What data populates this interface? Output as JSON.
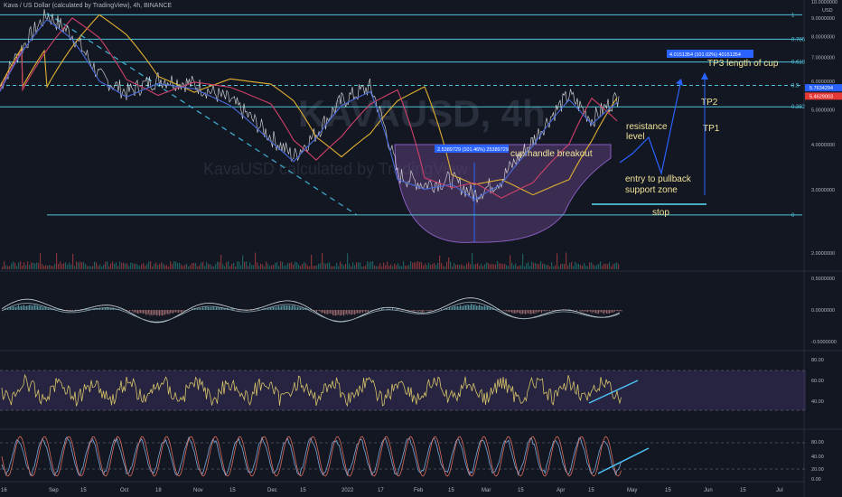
{
  "header": {
    "title": "Kava / US Dollar (calculated by TradingView), 4h, BINANCE",
    "sub": "KavaUSD calculated by TradingView"
  },
  "watermark": "KAVAUSD, 4h",
  "colors": {
    "bg": "#131722",
    "fib": "#4fc3d9",
    "trend": "#3fa7c9",
    "cup": "#6a4a8c",
    "ma": "#e0b030",
    "text_annot": "#f0e39a",
    "label_blue": "#2962ff",
    "price_red": "#e53935",
    "price_blue": "#2962ff",
    "macd_line": "#8aa0b8",
    "rsi": "#d6c36a",
    "stoch_a": "#7aa7d9",
    "stoch_b": "#d96a5a"
  },
  "price_axis": {
    "unit": "USD",
    "ticks": [
      "10.0000000",
      "9.0000000",
      "8.0000000",
      "7.0000000",
      "6.0000000",
      "5.0000000",
      "4.0000000",
      "3.0000000",
      "2.0000000"
    ],
    "price_red": "5.4629003",
    "price_blue": "5.7634294"
  },
  "fib_levels": [
    {
      "label": "1",
      "price": 9.2
    },
    {
      "label": "0.786",
      "price": 7.87
    },
    {
      "label": "0.618",
      "price": 6.8
    },
    {
      "label": "0.5",
      "price": 5.85
    },
    {
      "label": "0.382",
      "price": 5.1
    },
    {
      "label": "0",
      "price": 2.55
    }
  ],
  "x_axis_ticks": [
    "16",
    "Sep",
    "15",
    "Oct",
    "18",
    "Nov",
    "15",
    "Dec",
    "15",
    "2022",
    "17",
    "Feb",
    "15",
    "Mar",
    "15",
    "Apr",
    "15",
    "May",
    "15",
    "Jun",
    "15",
    "Jul"
  ],
  "annotations": {
    "resistance": "resistance\nlevel",
    "entry": "entry to pullback\nsupport zone",
    "stop": "stop",
    "tp1": "TP1",
    "tp2": "TP2",
    "tp3": "TP3 length of cup",
    "breakout": "cup handle breakout",
    "measure_cup": "2.5389729 (101.46%) 25389729",
    "measure_tp3": "4.0151354 (101.02%) 40151354"
  },
  "macd_axis": {
    "ticks": [
      "0.5000000",
      "0.0000000",
      "-0.5000000"
    ]
  },
  "rsi_axis": {
    "ticks": [
      "80.00",
      "60.00",
      "40.00"
    ]
  },
  "stoch_axis": {
    "ticks": [
      "80.00",
      "40.00",
      "20.00",
      "0.00"
    ]
  },
  "chart_data": {
    "type": "line",
    "title": "Kava / US Dollar (calculated by TradingView), 4h, BINANCE",
    "ylabel": "USD",
    "ylim": [
      1.8,
      10
    ],
    "series": [
      {
        "x": [
          "Aug 16",
          "Aug 25",
          "Sep 1",
          "Sep 10",
          "Sep 20",
          "Oct 1",
          "Oct 15",
          "Nov 1",
          "Nov 15",
          "Dec 1",
          "Dec 10",
          "Dec 20",
          "Jan 1",
          "Jan 15",
          "Jan 20",
          "Feb 1",
          "Feb 15",
          "Mar 1",
          "Mar 15",
          "Apr 1",
          "Apr 10",
          "Apr 15",
          "Apr 25"
        ],
        "values": [
          5.8,
          7.5,
          9.2,
          8.1,
          6.2,
          5.6,
          6.1,
          5.9,
          5.3,
          4.2,
          3.7,
          4.3,
          5.3,
          5.8,
          3.3,
          3.1,
          3.2,
          2.9,
          3.2,
          4.1,
          5.5,
          4.7,
          5.46
        ]
      }
    ]
  }
}
